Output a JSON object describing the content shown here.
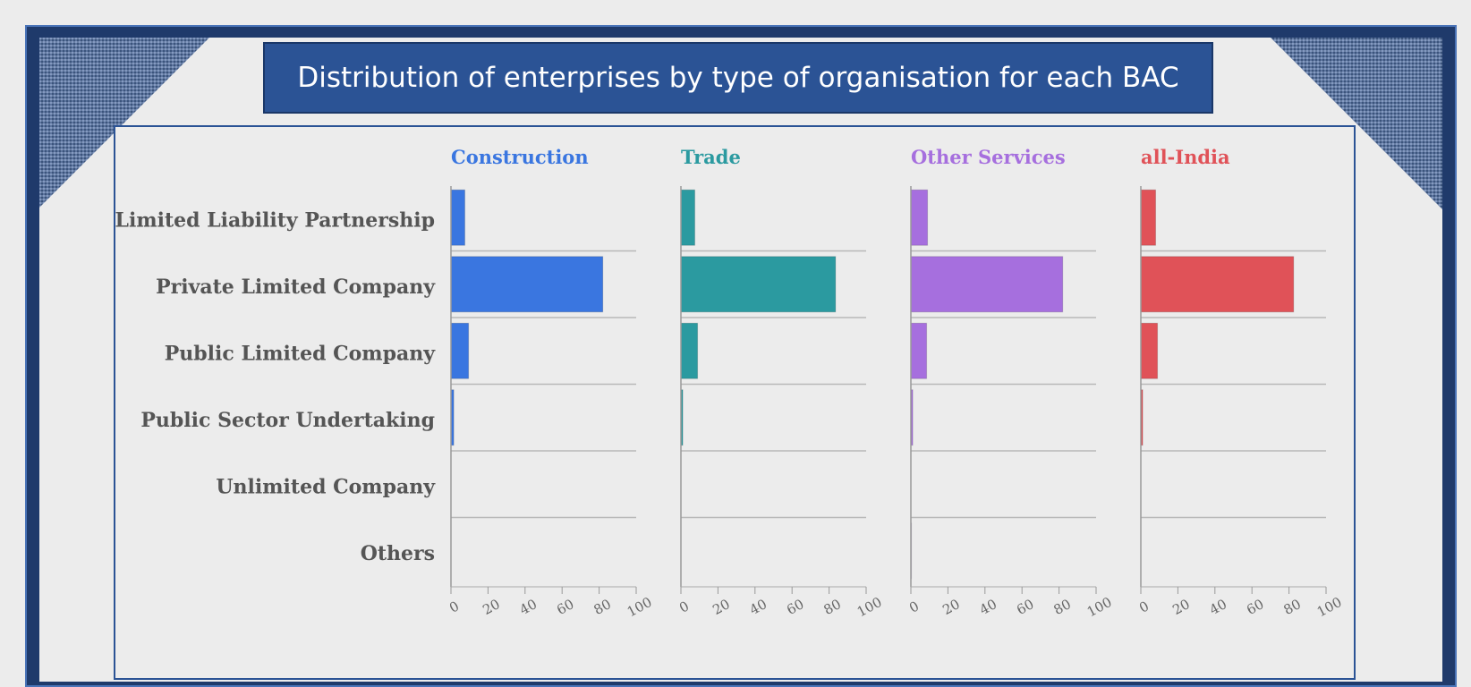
{
  "title": "Distribution of enterprises by type of organisation for each BAC",
  "chart_data": {
    "type": "bar",
    "orientation": "horizontal",
    "categories": [
      "Limited Liability Partnership",
      "Private Limited Company",
      "Public Limited Company",
      "Public Sector Undertaking",
      "Unlimited Company",
      "Others"
    ],
    "xlim": [
      0,
      100
    ],
    "x_ticks": [
      0,
      20,
      40,
      60,
      80,
      100
    ],
    "series": [
      {
        "name": "Construction",
        "color": "#3a76e0",
        "values": [
          7.5,
          82,
          9.5,
          1.5,
          0,
          0
        ]
      },
      {
        "name": "Trade",
        "color": "#2b9aa0",
        "values": [
          7.5,
          83.5,
          9,
          1,
          0,
          0
        ]
      },
      {
        "name": "Other Services",
        "color": "#a66fde",
        "values": [
          9,
          82,
          8.5,
          1,
          0,
          0.3
        ]
      },
      {
        "name": "all-India",
        "color": "#e05258",
        "values": [
          8,
          82.5,
          9,
          1,
          0,
          0
        ]
      }
    ]
  }
}
